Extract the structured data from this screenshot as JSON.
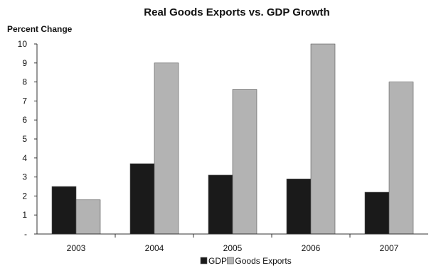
{
  "chart_data": {
    "type": "bar",
    "title": "Real Goods Exports vs. GDP Growth",
    "ylabel": "Percent Change",
    "xlabel": "",
    "categories": [
      "2003",
      "2004",
      "2005",
      "2006",
      "2007"
    ],
    "series": [
      {
        "name": "GDP",
        "color": "#1a1a1a",
        "values": [
          2.5,
          3.7,
          3.1,
          2.9,
          2.2
        ]
      },
      {
        "name": "Goods Exports",
        "color": "#b3b3b3",
        "values": [
          1.8,
          9.0,
          7.6,
          10.0,
          8.0
        ]
      }
    ],
    "ylim": [
      0,
      10
    ],
    "yticks": [
      "-",
      "1",
      "2",
      "3",
      "4",
      "5",
      "6",
      "7",
      "8",
      "9",
      "10"
    ],
    "grid": false,
    "legend_position": "bottom-center"
  }
}
